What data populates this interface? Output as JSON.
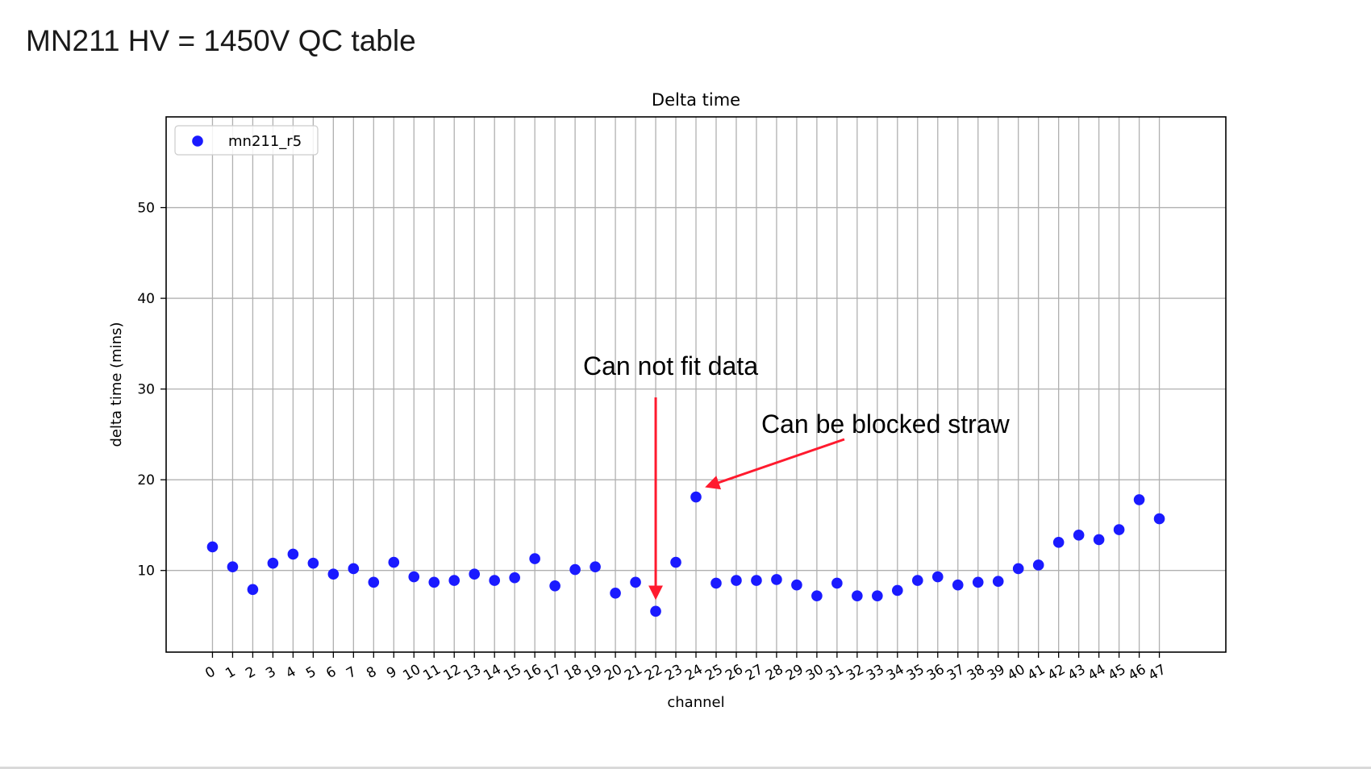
{
  "slide": {
    "title": "MN211 HV = 1450V QC table"
  },
  "chart_data": {
    "type": "scatter",
    "title": "Delta time",
    "xlabel": "channel",
    "ylabel": "delta time (mins)",
    "x": [
      0,
      1,
      2,
      3,
      4,
      5,
      6,
      7,
      8,
      9,
      10,
      11,
      12,
      13,
      14,
      15,
      16,
      17,
      18,
      19,
      20,
      21,
      22,
      23,
      24,
      25,
      26,
      27,
      28,
      29,
      30,
      31,
      32,
      33,
      34,
      35,
      36,
      37,
      38,
      39,
      40,
      41,
      42,
      43,
      44,
      45,
      46,
      47
    ],
    "series": [
      {
        "name": "mn211_r5",
        "color": "#1a1aff",
        "values": [
          12.6,
          10.4,
          7.9,
          10.8,
          11.8,
          10.8,
          9.6,
          10.2,
          8.7,
          10.9,
          9.3,
          8.7,
          8.9,
          9.6,
          8.9,
          9.2,
          11.3,
          8.3,
          10.1,
          10.4,
          7.5,
          8.7,
          5.5,
          10.9,
          18.1,
          8.6,
          8.9,
          8.9,
          9.0,
          8.4,
          7.2,
          8.6,
          7.2,
          7.2,
          7.8,
          8.9,
          9.3,
          8.4,
          8.7,
          8.8,
          10.2,
          10.6,
          13.1,
          13.9,
          13.4,
          14.5,
          17.8,
          15.7
        ]
      }
    ],
    "xticks": [
      "0",
      "1",
      "2",
      "3",
      "4",
      "5",
      "6",
      "7",
      "8",
      "9",
      "10",
      "11",
      "12",
      "13",
      "14",
      "15",
      "16",
      "17",
      "18",
      "19",
      "20",
      "21",
      "22",
      "23",
      "24",
      "25",
      "26",
      "27",
      "28",
      "29",
      "30",
      "31",
      "32",
      "33",
      "34",
      "35",
      "36",
      "37",
      "38",
      "39",
      "40",
      "41",
      "42",
      "43",
      "44",
      "45",
      "46",
      "47"
    ],
    "yticks": [
      10,
      20,
      30,
      40,
      50
    ],
    "xlim": [
      -2.3,
      50.3
    ],
    "ylim": [
      1,
      60
    ],
    "grid": true,
    "legend_position": "top-left",
    "annotations": [
      {
        "text": "Can not fit data",
        "target_x": 22,
        "target_y": 5.5,
        "color": "#ff1a2e"
      },
      {
        "text": "Can be blocked straw",
        "target_x": 24,
        "target_y": 18.1,
        "color": "#ff1a2e"
      }
    ]
  }
}
